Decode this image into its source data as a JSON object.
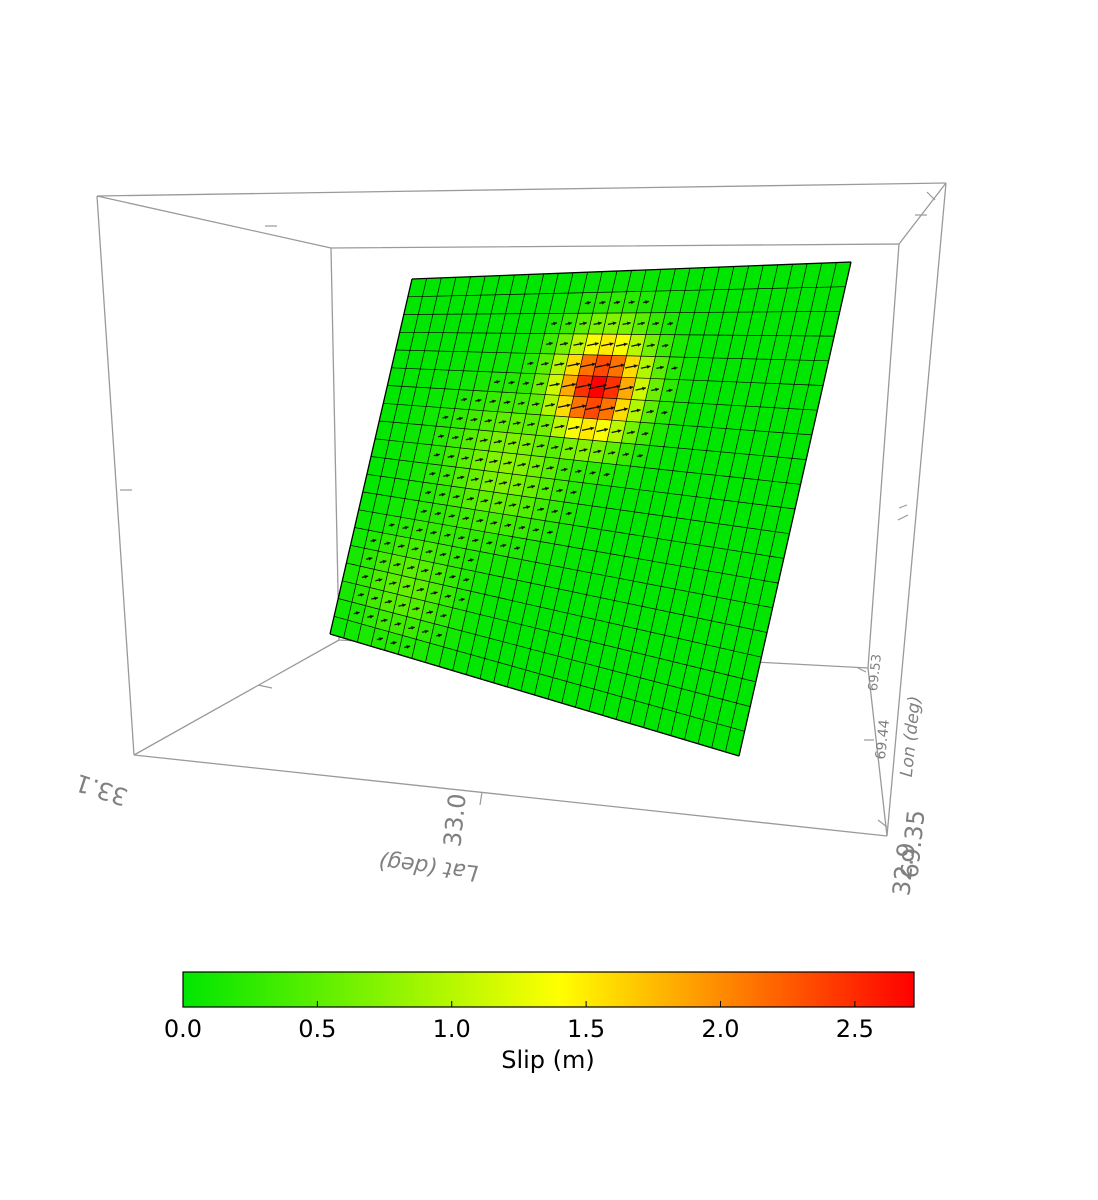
{
  "chart_data": {
    "type": "heatmap",
    "title": "",
    "colorbar": {
      "label": "Slip (m)",
      "ticks": [
        "0.0",
        "0.5",
        "1.0",
        "1.5",
        "2.0",
        "2.5"
      ],
      "tick_values": [
        0.0,
        0.5,
        1.0,
        1.5,
        2.0,
        2.5
      ],
      "range": [
        0.0,
        2.72
      ],
      "colors": [
        "#00e600",
        "#ffff00",
        "#ff0000"
      ]
    },
    "axes": {
      "lat": {
        "label": "Lat (deg)",
        "ticks": [
          {
            "text": "33.1",
            "value": 33.1
          },
          {
            "text": "33.0",
            "value": 33.0
          },
          {
            "text": "32.9",
            "value": 32.9
          }
        ]
      },
      "lon": {
        "label": "Lon (deg)",
        "ticks": [
          {
            "text": "69.35",
            "value": 69.35
          },
          {
            "text": "69.44",
            "value": 69.44
          },
          {
            "text": "69.53",
            "value": 69.53
          }
        ]
      }
    },
    "fault_grid": {
      "columns": 30,
      "rows": 20,
      "slip_peak": {
        "value": 2.72,
        "along_strike_col": 14,
        "down_dip_row": 5
      },
      "slip_vector_rake_deg": 20,
      "slip_vector_threshold_m": 0.15
    }
  }
}
